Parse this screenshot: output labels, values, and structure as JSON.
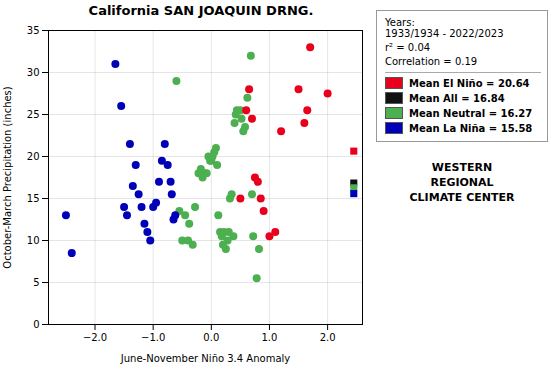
{
  "chart_data": {
    "type": "scatter",
    "title": "California SAN JOAQUIN DRNG.",
    "xlabel": "June-November Niño 3.4 Anomaly",
    "ylabel": "October-March Precipitation (inches)",
    "xlim": [
      -2.8,
      2.6
    ],
    "ylim": [
      0,
      35
    ],
    "xticks": [
      -2,
      -1,
      0,
      1,
      2
    ],
    "yticks": [
      0,
      5,
      10,
      15,
      20,
      25,
      30,
      35
    ],
    "grid": true,
    "legend": "right",
    "annotations": [
      "Years:\n1933/1934 - 2022/2023",
      "r² = 0.04",
      "Correlation = 0.19",
      "WESTERN",
      "REGIONAL",
      "CLIMATE CENTER"
    ],
    "series": [
      {
        "color": "#4caf50",
        "marker": "circle",
        "x": [
          -0.45,
          -0.4,
          -0.38,
          -0.32,
          -0.28,
          -0.22,
          -0.18,
          -0.15,
          -0.12,
          -0.08,
          -0.05,
          -0.02,
          0.0,
          0.02,
          0.05,
          0.08,
          0.1,
          0.12,
          0.15,
          0.18,
          0.2,
          0.22,
          0.25,
          0.28,
          0.3,
          0.32,
          0.35,
          0.38,
          0.4,
          0.42,
          0.44,
          0.5,
          0.52,
          0.55,
          0.58,
          0.62,
          0.68,
          -0.5,
          -0.55,
          -0.6,
          0.7,
          0.72,
          0.78,
          0.82
        ],
        "values": [
          13.0,
          10.0,
          12.0,
          9.5,
          14.0,
          18.0,
          18.5,
          17.5,
          18.0,
          18.0,
          20.0,
          19.5,
          19.5,
          20.0,
          20.5,
          21.0,
          19.0,
          13.0,
          11.0,
          10.5,
          9.5,
          11.0,
          9.0,
          10.0,
          11.0,
          15.0,
          15.5,
          10.5,
          24.0,
          25.0,
          25.5,
          25.5,
          24.5,
          23.0,
          23.5,
          27.0,
          32.0,
          10.0,
          13.5,
          29.0,
          15.5,
          10.5,
          5.5,
          9.0
        ]
      },
      {
        "color": "#0000b8",
        "marker": "circle",
        "x": [
          -2.5,
          -2.4,
          -1.65,
          -1.55,
          -1.5,
          -1.45,
          -1.4,
          -1.35,
          -1.3,
          -1.25,
          -1.2,
          -1.15,
          -1.1,
          -1.05,
          -1.0,
          -0.95,
          -0.9,
          -0.85,
          -0.8,
          -0.75,
          -0.7,
          -0.68,
          -0.65,
          -0.62
        ],
        "values": [
          13.0,
          8.5,
          31.0,
          26.0,
          14.0,
          13.0,
          21.5,
          16.5,
          19.0,
          15.5,
          14.0,
          12.0,
          11.0,
          10.0,
          14.0,
          14.5,
          17.0,
          19.5,
          21.5,
          19.0,
          17.0,
          15.5,
          12.5,
          13.0
        ]
      },
      {
        "color": "#e8001c",
        "marker": "circle",
        "x": [
          0.5,
          0.6,
          0.65,
          0.7,
          0.75,
          0.8,
          0.85,
          0.9,
          1.0,
          1.1,
          1.2,
          1.5,
          1.6,
          1.65,
          1.7,
          2.0
        ],
        "values": [
          15.0,
          25.5,
          28.0,
          24.5,
          17.5,
          17.0,
          15.0,
          13.5,
          10.5,
          11.0,
          23.0,
          28.0,
          24.0,
          25.5,
          33.0,
          27.5
        ]
      },
      {
        "name": "Mean El Niño = 20.64",
        "color": "#e8001c",
        "marker": "square",
        "x": [
          2.45
        ],
        "values": [
          20.64
        ]
      },
      {
        "name": "Mean All = 16.84",
        "color": "#111111",
        "marker": "square",
        "x": [
          2.45
        ],
        "values": [
          16.84
        ]
      },
      {
        "name": "Mean Neutral = 16.27",
        "color": "#4caf50",
        "marker": "square",
        "x": [
          2.45
        ],
        "values": [
          16.27
        ]
      },
      {
        "name": "Mean La Niña = 15.58",
        "color": "#0000b8",
        "marker": "square",
        "x": [
          2.45
        ],
        "values": [
          15.58
        ]
      }
    ]
  }
}
